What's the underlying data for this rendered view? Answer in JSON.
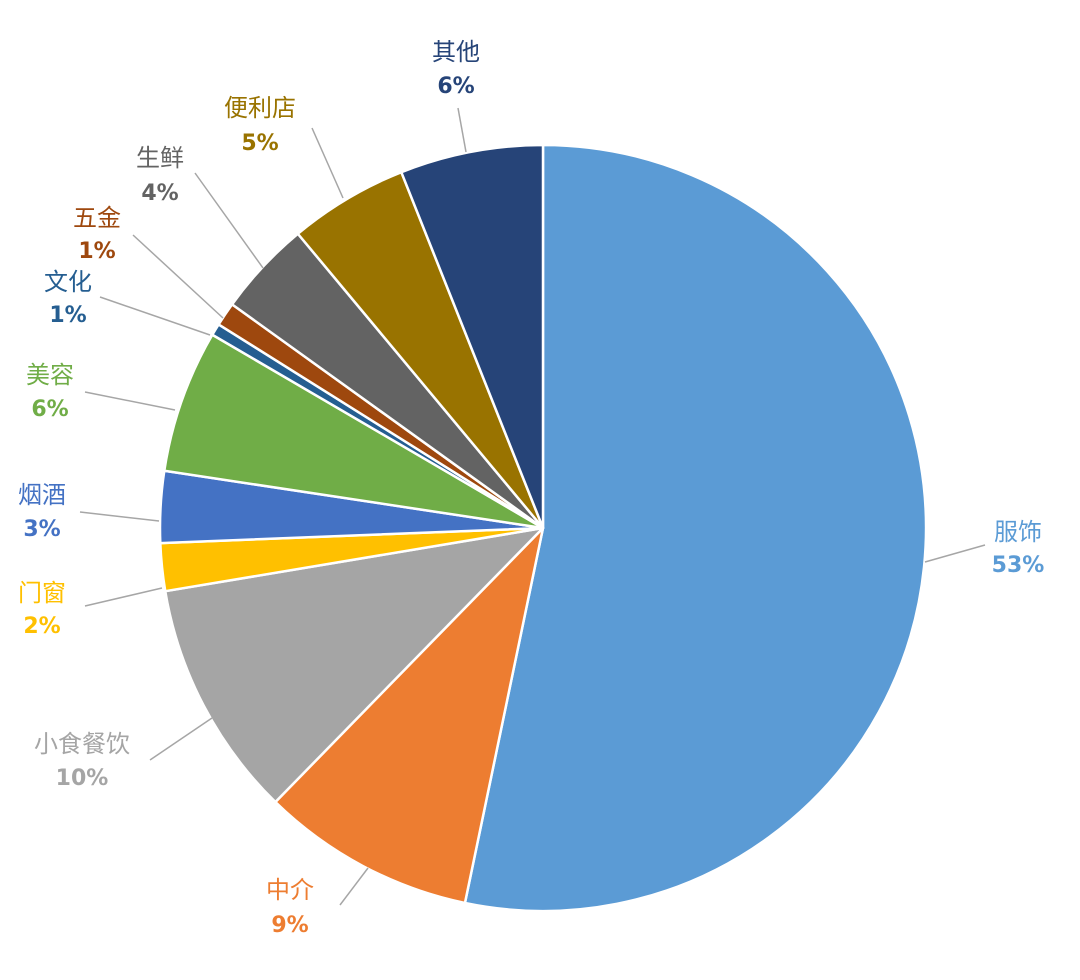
{
  "chart_data": {
    "type": "pie",
    "title": "",
    "legend": "none",
    "slices": [
      {
        "label": "服饰",
        "value": 53,
        "pct_label": "53%",
        "color": "#5B9BD5"
      },
      {
        "label": "中介",
        "value": 9,
        "pct_label": "9%",
        "color": "#ED7D31"
      },
      {
        "label": "小食餐饮",
        "value": 10,
        "pct_label": "10%",
        "color": "#A5A5A5"
      },
      {
        "label": "门窗",
        "value": 2,
        "pct_label": "2%",
        "color": "#FFC000"
      },
      {
        "label": "烟酒",
        "value": 3,
        "pct_label": "3%",
        "color": "#4472C4"
      },
      {
        "label": "美容",
        "value": 6,
        "pct_label": "6%",
        "color": "#70AD47"
      },
      {
        "label": "文化",
        "value": 0.5,
        "pct_label": "1%",
        "color": "#255E91"
      },
      {
        "label": "五金",
        "value": 1,
        "pct_label": "1%",
        "color": "#9E480E"
      },
      {
        "label": "生鲜",
        "value": 4,
        "pct_label": "4%",
        "color": "#636363"
      },
      {
        "label": "便利店",
        "value": 5,
        "pct_label": "5%",
        "color": "#997300"
      },
      {
        "label": "其他",
        "value": 6,
        "pct_label": "6%",
        "color": "#264478"
      }
    ]
  }
}
